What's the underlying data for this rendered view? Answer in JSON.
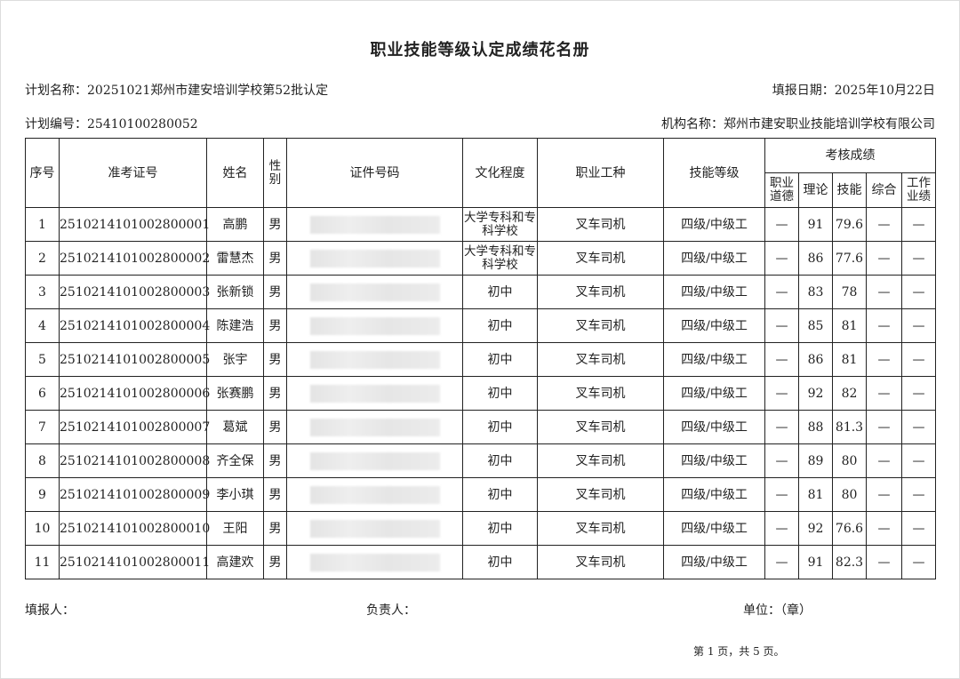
{
  "title": "职业技能等级认定成绩花名册",
  "plan_name": "计划名称：20251021郑州市建安培训学校第52批认定",
  "fill_date": "填报日期：2025年10月22日",
  "plan_no": "计划编号：25410100280052",
  "org_name": "机构名称：郑州市建安职业技能培训学校有限公司",
  "headers": {
    "seq": "序号",
    "exam_no": "准考证号",
    "name": "姓名",
    "gender": "性别",
    "id_no": "证件号码",
    "education": "文化程度",
    "occupation": "职业工种",
    "level": "技能等级",
    "scores": "考核成绩",
    "ethics": "职业道德",
    "theory": "理论",
    "skill": "技能",
    "overall": "综合",
    "work": "工作业绩"
  },
  "rows": [
    {
      "seq": "1",
      "exam_no": "2510214101002800001",
      "name": "高鹏",
      "gender": "男",
      "education": "大学专科和专科学校",
      "occupation": "叉车司机",
      "level": "四级/中级工",
      "ethics": "—",
      "theory": "91",
      "skill": "79.6",
      "overall": "—",
      "work": "—"
    },
    {
      "seq": "2",
      "exam_no": "2510214101002800002",
      "name": "雷慧杰",
      "gender": "男",
      "education": "大学专科和专科学校",
      "occupation": "叉车司机",
      "level": "四级/中级工",
      "ethics": "—",
      "theory": "86",
      "skill": "77.6",
      "overall": "—",
      "work": "—"
    },
    {
      "seq": "3",
      "exam_no": "2510214101002800003",
      "name": "张新锁",
      "gender": "男",
      "education": "初中",
      "occupation": "叉车司机",
      "level": "四级/中级工",
      "ethics": "—",
      "theory": "83",
      "skill": "78",
      "overall": "—",
      "work": "—"
    },
    {
      "seq": "4",
      "exam_no": "2510214101002800004",
      "name": "陈建浩",
      "gender": "男",
      "education": "初中",
      "occupation": "叉车司机",
      "level": "四级/中级工",
      "ethics": "—",
      "theory": "85",
      "skill": "81",
      "overall": "—",
      "work": "—"
    },
    {
      "seq": "5",
      "exam_no": "2510214101002800005",
      "name": "张宇",
      "gender": "男",
      "education": "初中",
      "occupation": "叉车司机",
      "level": "四级/中级工",
      "ethics": "—",
      "theory": "86",
      "skill": "81",
      "overall": "—",
      "work": "—"
    },
    {
      "seq": "6",
      "exam_no": "2510214101002800006",
      "name": "张赛鹏",
      "gender": "男",
      "education": "初中",
      "occupation": "叉车司机",
      "level": "四级/中级工",
      "ethics": "—",
      "theory": "92",
      "skill": "82",
      "overall": "—",
      "work": "—"
    },
    {
      "seq": "7",
      "exam_no": "2510214101002800007",
      "name": "葛斌",
      "gender": "男",
      "education": "初中",
      "occupation": "叉车司机",
      "level": "四级/中级工",
      "ethics": "—",
      "theory": "88",
      "skill": "81.3",
      "overall": "—",
      "work": "—"
    },
    {
      "seq": "8",
      "exam_no": "2510214101002800008",
      "name": "齐全保",
      "gender": "男",
      "education": "初中",
      "occupation": "叉车司机",
      "level": "四级/中级工",
      "ethics": "—",
      "theory": "89",
      "skill": "80",
      "overall": "—",
      "work": "—"
    },
    {
      "seq": "9",
      "exam_no": "2510214101002800009",
      "name": "李小琪",
      "gender": "男",
      "education": "初中",
      "occupation": "叉车司机",
      "level": "四级/中级工",
      "ethics": "—",
      "theory": "81",
      "skill": "80",
      "overall": "—",
      "work": "—"
    },
    {
      "seq": "10",
      "exam_no": "2510214101002800010",
      "name": "王阳",
      "gender": "男",
      "education": "初中",
      "occupation": "叉车司机",
      "level": "四级/中级工",
      "ethics": "—",
      "theory": "92",
      "skill": "76.6",
      "overall": "—",
      "work": "—"
    },
    {
      "seq": "11",
      "exam_no": "2510214101002800011",
      "name": "高建欢",
      "gender": "男",
      "education": "初中",
      "occupation": "叉车司机",
      "level": "四级/中级工",
      "ethics": "—",
      "theory": "91",
      "skill": "82.3",
      "overall": "—",
      "work": "—"
    }
  ],
  "footer": {
    "filler": "填报人：",
    "responsible": "负责人：",
    "unit": "单位：（章）",
    "page": "第 1 页，共 5 页。"
  }
}
